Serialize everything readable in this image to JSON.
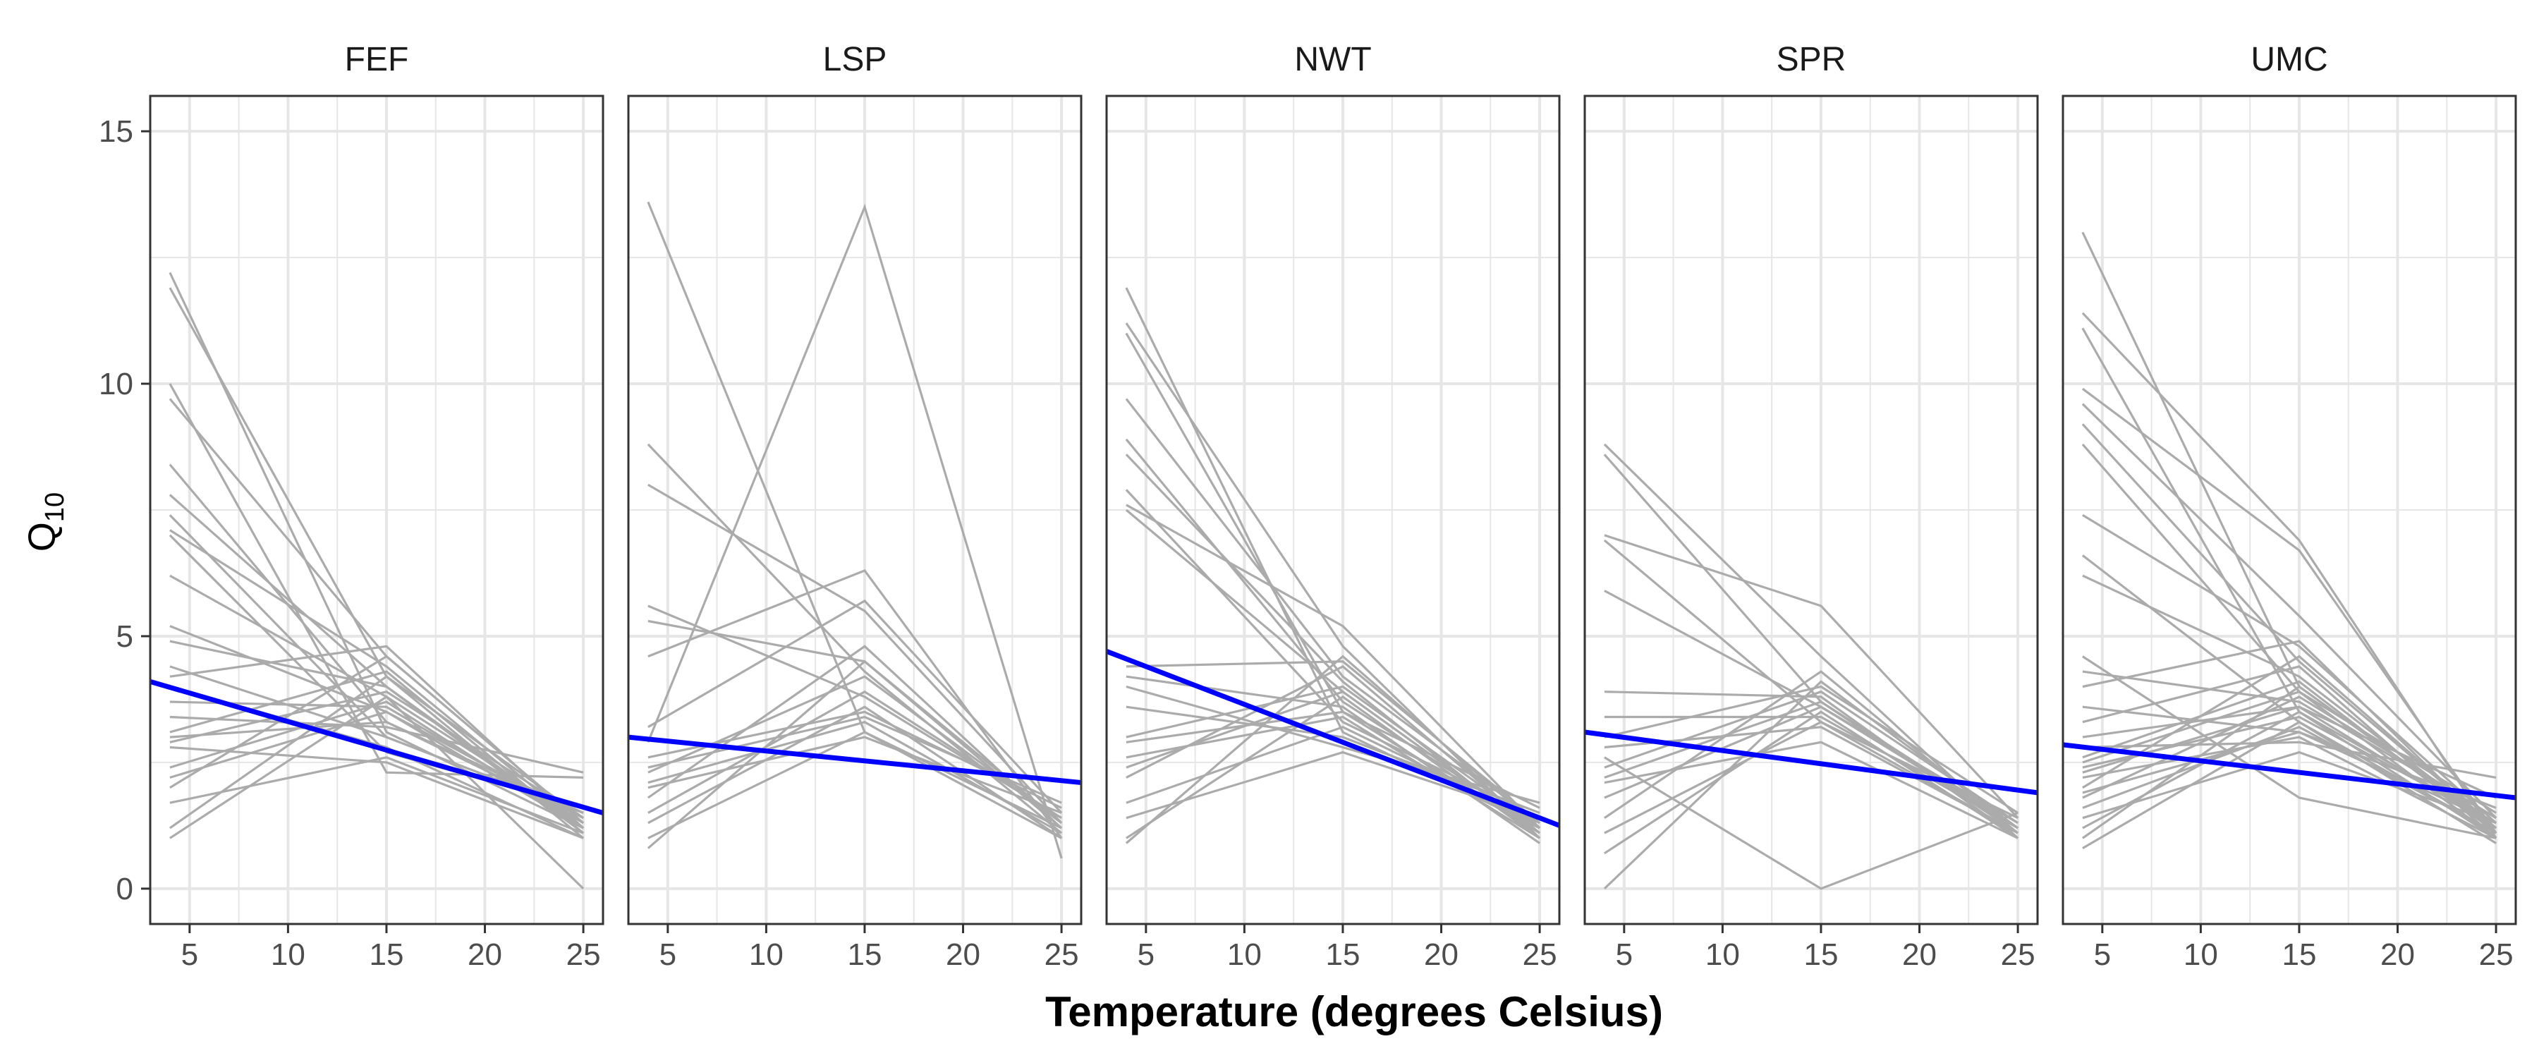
{
  "chart_data": {
    "type": "line",
    "facet_titles": [
      "FEF",
      "LSP",
      "NWT",
      "SPR",
      "UMC"
    ],
    "xlabel": "Temperature (degrees Celsius)",
    "ylabel": "Q",
    "ylabel_subscript": "10",
    "xlim": [
      3,
      26
    ],
    "ylim": [
      -0.7,
      15.7
    ],
    "xticks": [
      5,
      10,
      15,
      20,
      25
    ],
    "yticks": [
      0,
      5,
      10,
      15
    ],
    "grid": true,
    "colors": {
      "individual": "#ababab",
      "trend": "#0000ff",
      "grid": "#e6e6e6",
      "panel_border": "#333333"
    },
    "panels": [
      {
        "name": "FEF",
        "trend": {
          "x": [
            3,
            26
          ],
          "y": [
            4.1,
            1.5
          ]
        },
        "lines": [
          [
            12.2,
            3.1,
            1.2
          ],
          [
            11.9,
            4.2,
            1.0
          ],
          [
            10.0,
            2.3,
            2.2
          ],
          [
            9.7,
            4.6,
            1.3
          ],
          [
            8.4,
            3.3,
            1.4
          ],
          [
            7.8,
            4.0,
            1.1
          ],
          [
            7.4,
            3.0,
            1.5
          ],
          [
            7.1,
            4.4,
            1.2
          ],
          [
            7.0,
            2.7,
            1.6
          ],
          [
            6.2,
            3.8,
            1.3
          ],
          [
            5.2,
            3.5,
            1.4
          ],
          [
            4.9,
            4.0,
            1.2
          ],
          [
            4.4,
            3.0,
            1.5
          ],
          [
            4.2,
            4.8,
            1.2
          ],
          [
            3.7,
            3.6,
            1.3
          ],
          [
            3.4,
            3.2,
            2.3
          ],
          [
            3.1,
            4.3,
            1.1
          ],
          [
            2.9,
            3.9,
            1.4
          ],
          [
            2.8,
            2.5,
            1.0
          ],
          [
            2.2,
            3.5,
            1.2
          ],
          [
            2.0,
            4.6,
            1.3
          ],
          [
            1.7,
            2.6,
            1.1
          ],
          [
            1.2,
            4.2,
            1.4
          ],
          [
            1.0,
            3.8,
            0.0
          ],
          [
            3.0,
            3.3,
            1.5
          ],
          [
            2.4,
            3.7,
            1.2
          ],
          [
            4.0,
            2.8,
            1.0
          ]
        ]
      },
      {
        "name": "LSP",
        "trend": {
          "x": [
            3,
            26
          ],
          "y": [
            3.0,
            2.1
          ]
        },
        "lines": [
          [
            13.6,
            3.1,
            1.0
          ],
          [
            8.8,
            4.3,
            1.1
          ],
          [
            8.0,
            5.5,
            1.3
          ],
          [
            5.6,
            3.8,
            1.4
          ],
          [
            5.3,
            4.5,
            1.2
          ],
          [
            4.6,
            6.3,
            1.0
          ],
          [
            3.2,
            5.7,
            1.5
          ],
          [
            2.9,
            13.5,
            0.6
          ],
          [
            2.6,
            3.5,
            1.6
          ],
          [
            2.3,
            4.2,
            1.3
          ],
          [
            2.1,
            3.3,
            1.1
          ],
          [
            1.8,
            4.8,
            1.2
          ],
          [
            1.5,
            3.9,
            1.4
          ],
          [
            1.3,
            3.6,
            1.0
          ],
          [
            1.0,
            3.1,
            1.2
          ],
          [
            0.8,
            4.5,
            1.3
          ],
          [
            2.0,
            3.0,
            1.5
          ],
          [
            2.4,
            3.4,
            1.7
          ]
        ]
      },
      {
        "name": "NWT",
        "trend": {
          "x": [
            3,
            26
          ],
          "y": [
            4.7,
            1.25
          ]
        },
        "lines": [
          [
            11.9,
            3.1,
            1.2
          ],
          [
            11.2,
            4.8,
            1.0
          ],
          [
            11.0,
            3.5,
            1.1
          ],
          [
            9.7,
            4.2,
            1.3
          ],
          [
            8.9,
            3.7,
            1.2
          ],
          [
            8.6,
            4.1,
            1.0
          ],
          [
            7.9,
            3.3,
            1.4
          ],
          [
            7.6,
            5.2,
            1.2
          ],
          [
            7.5,
            3.9,
            1.1
          ],
          [
            4.4,
            4.5,
            1.3
          ],
          [
            4.2,
            3.6,
            0.9
          ],
          [
            4.0,
            2.8,
            1.7
          ],
          [
            3.6,
            3.0,
            1.5
          ],
          [
            3.0,
            4.0,
            1.2
          ],
          [
            2.6,
            3.4,
            1.0
          ],
          [
            2.2,
            4.4,
            1.1
          ],
          [
            1.7,
            3.2,
            1.3
          ],
          [
            1.4,
            2.7,
            1.4
          ],
          [
            1.0,
            3.8,
            1.0
          ],
          [
            0.9,
            4.6,
            1.2
          ],
          [
            2.9,
            3.5,
            1.6
          ],
          [
            2.4,
            3.9,
            1.1
          ]
        ]
      },
      {
        "name": "SPR",
        "trend": {
          "x": [
            3,
            26
          ],
          "y": [
            3.1,
            1.9
          ]
        },
        "lines": [
          [
            8.8,
            4.6,
            1.0
          ],
          [
            8.6,
            3.7,
            1.2
          ],
          [
            7.0,
            5.6,
            1.4
          ],
          [
            6.9,
            3.3,
            1.1
          ],
          [
            5.9,
            3.6,
            1.3
          ],
          [
            3.9,
            3.8,
            1.0
          ],
          [
            3.4,
            3.4,
            1.2
          ],
          [
            3.0,
            4.0,
            1.5
          ],
          [
            2.8,
            3.2,
            1.1
          ],
          [
            2.4,
            3.9,
            1.3
          ],
          [
            2.1,
            2.9,
            1.0
          ],
          [
            1.8,
            3.6,
            1.2
          ],
          [
            1.4,
            4.3,
            1.1
          ],
          [
            1.1,
            3.3,
            1.4
          ],
          [
            0.7,
            3.5,
            1.0
          ],
          [
            0.0,
            4.1,
            1.2
          ],
          [
            2.6,
            0.0,
            1.5
          ],
          [
            2.2,
            3.7,
            1.1
          ]
        ]
      },
      {
        "name": "UMC",
        "trend": {
          "x": [
            3,
            26
          ],
          "y": [
            2.85,
            1.8
          ]
        },
        "lines": [
          [
            13.0,
            4.0,
            1.2
          ],
          [
            11.4,
            6.9,
            1.0
          ],
          [
            11.1,
            3.5,
            1.3
          ],
          [
            9.9,
            6.7,
            1.1
          ],
          [
            9.6,
            5.4,
            1.4
          ],
          [
            9.2,
            4.5,
            1.2
          ],
          [
            8.8,
            3.9,
            1.0
          ],
          [
            7.4,
            4.8,
            1.3
          ],
          [
            6.6,
            3.3,
            1.1
          ],
          [
            6.2,
            4.2,
            1.2
          ],
          [
            4.6,
            1.8,
            1.0
          ],
          [
            4.3,
            3.7,
            1.4
          ],
          [
            4.0,
            4.9,
            1.1
          ],
          [
            3.6,
            3.1,
            1.3
          ],
          [
            3.3,
            4.4,
            1.0
          ],
          [
            3.0,
            3.6,
            1.2
          ],
          [
            2.8,
            2.9,
            2.2
          ],
          [
            2.6,
            4.1,
            1.1
          ],
          [
            2.4,
            3.4,
            1.3
          ],
          [
            2.2,
            3.0,
            1.0
          ],
          [
            2.0,
            4.6,
            1.2
          ],
          [
            1.8,
            3.8,
            1.4
          ],
          [
            1.6,
            3.2,
            1.1
          ],
          [
            1.4,
            2.7,
            1.3
          ],
          [
            1.2,
            3.5,
            1.0
          ],
          [
            1.0,
            4.0,
            1.2
          ],
          [
            0.8,
            3.3,
            0.9
          ],
          [
            2.5,
            3.9,
            1.5
          ],
          [
            1.9,
            3.1,
            1.6
          ],
          [
            2.3,
            3.6,
            1.8
          ]
        ]
      }
    ]
  }
}
